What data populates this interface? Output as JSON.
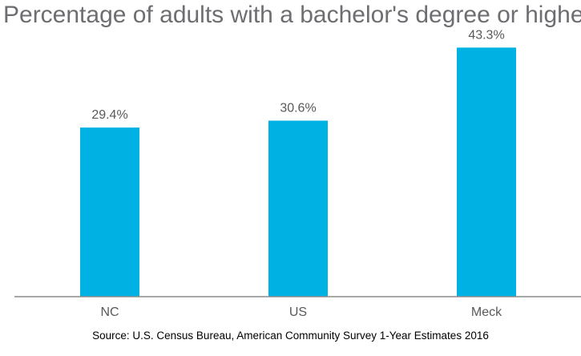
{
  "chart_data": {
    "type": "bar",
    "title": "Percentage of adults with a bachelor's degree or higher",
    "categories": [
      "NC",
      "US",
      "Meck"
    ],
    "values": [
      29.4,
      30.6,
      43.3
    ],
    "value_labels": [
      "29.4%",
      "30.6%",
      "43.3%"
    ],
    "ylim": [
      0,
      46
    ],
    "grid": false,
    "legend": "none",
    "bar_color": "#00b2e3",
    "source": "Source: U.S. Census Bureau, American Community Survey 1-Year Estimates 2016"
  }
}
